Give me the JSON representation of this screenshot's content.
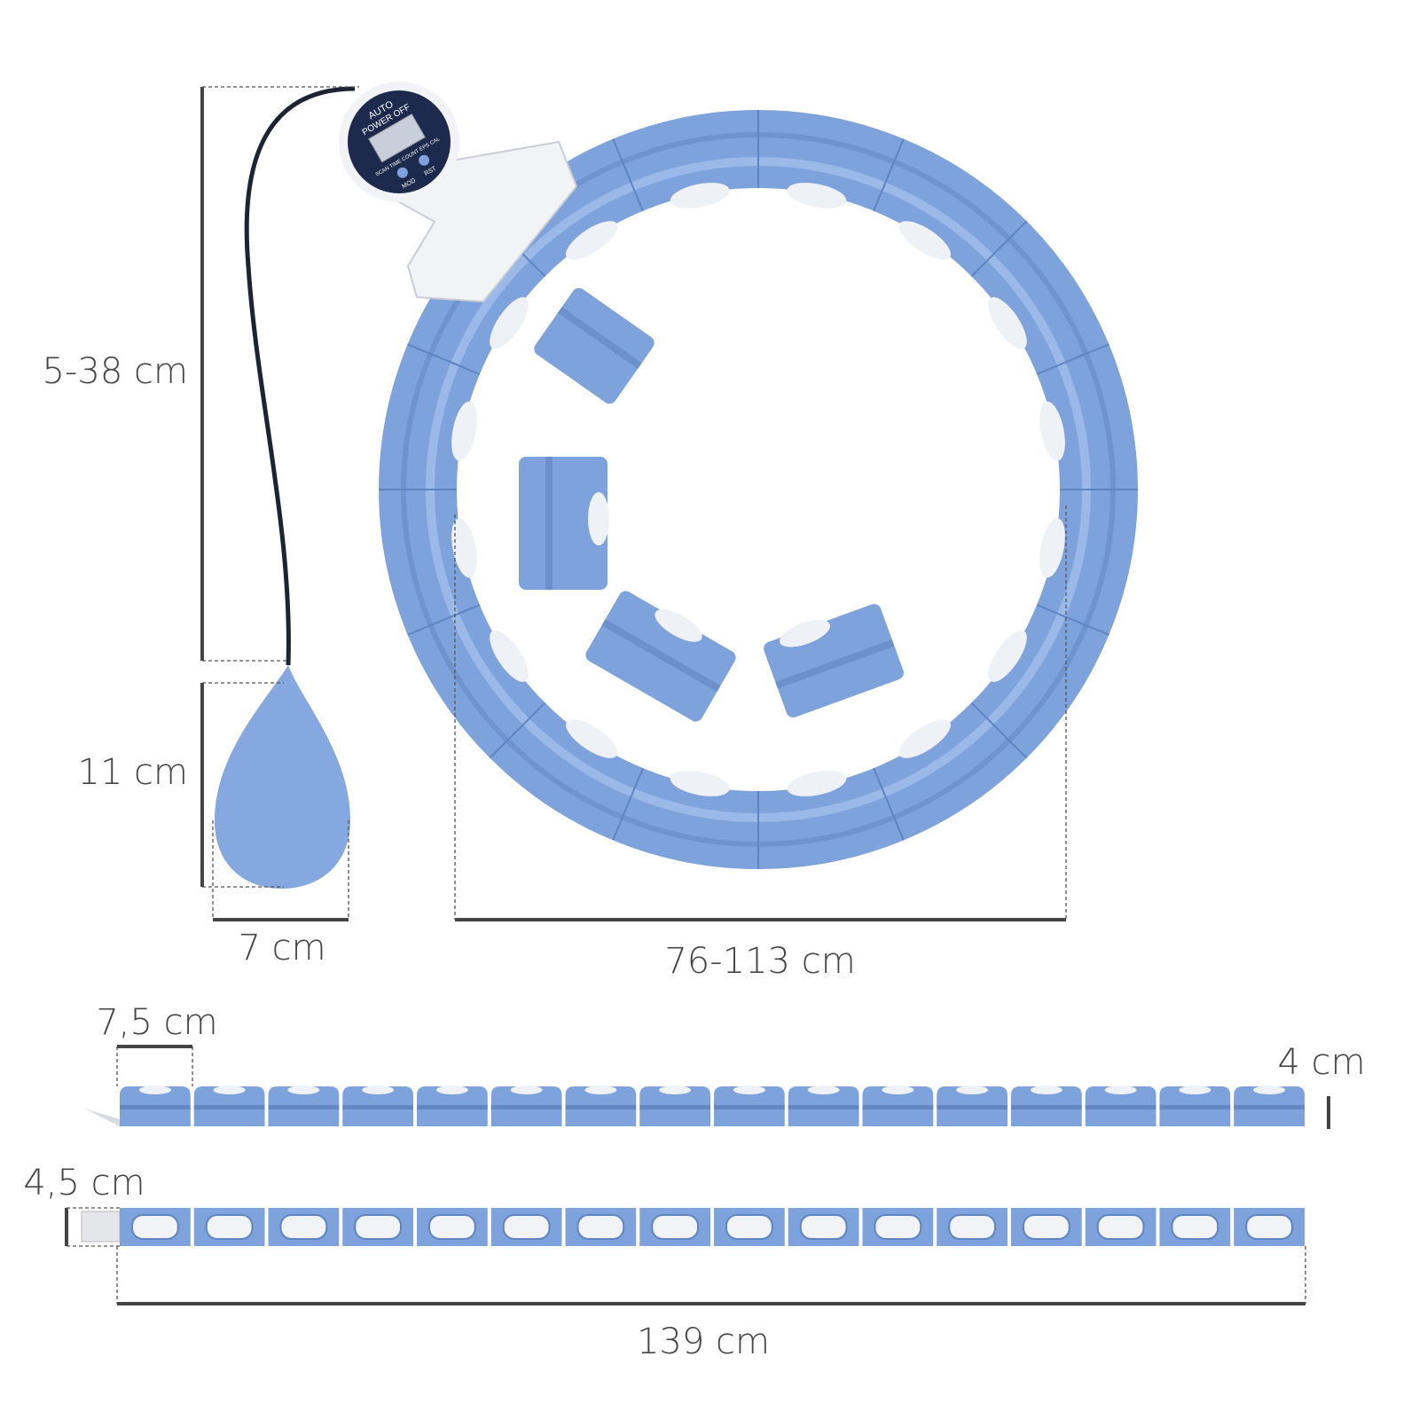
{
  "dimensions": {
    "cord_length": "5-38 cm",
    "weight_height": "11 cm",
    "weight_width": "7 cm",
    "hoop_diameter": "76-113 cm",
    "segment_length": "7,5 cm",
    "segment_height": "4 cm",
    "segment_width": "4,5 cm",
    "total_length": "139 cm"
  },
  "counter": {
    "label_top": "AUTO",
    "label_bottom": "POWER OFF",
    "modes": "SCAN TIME COUNT EPS CAL",
    "button_left": "MOD",
    "button_right": "RST"
  }
}
